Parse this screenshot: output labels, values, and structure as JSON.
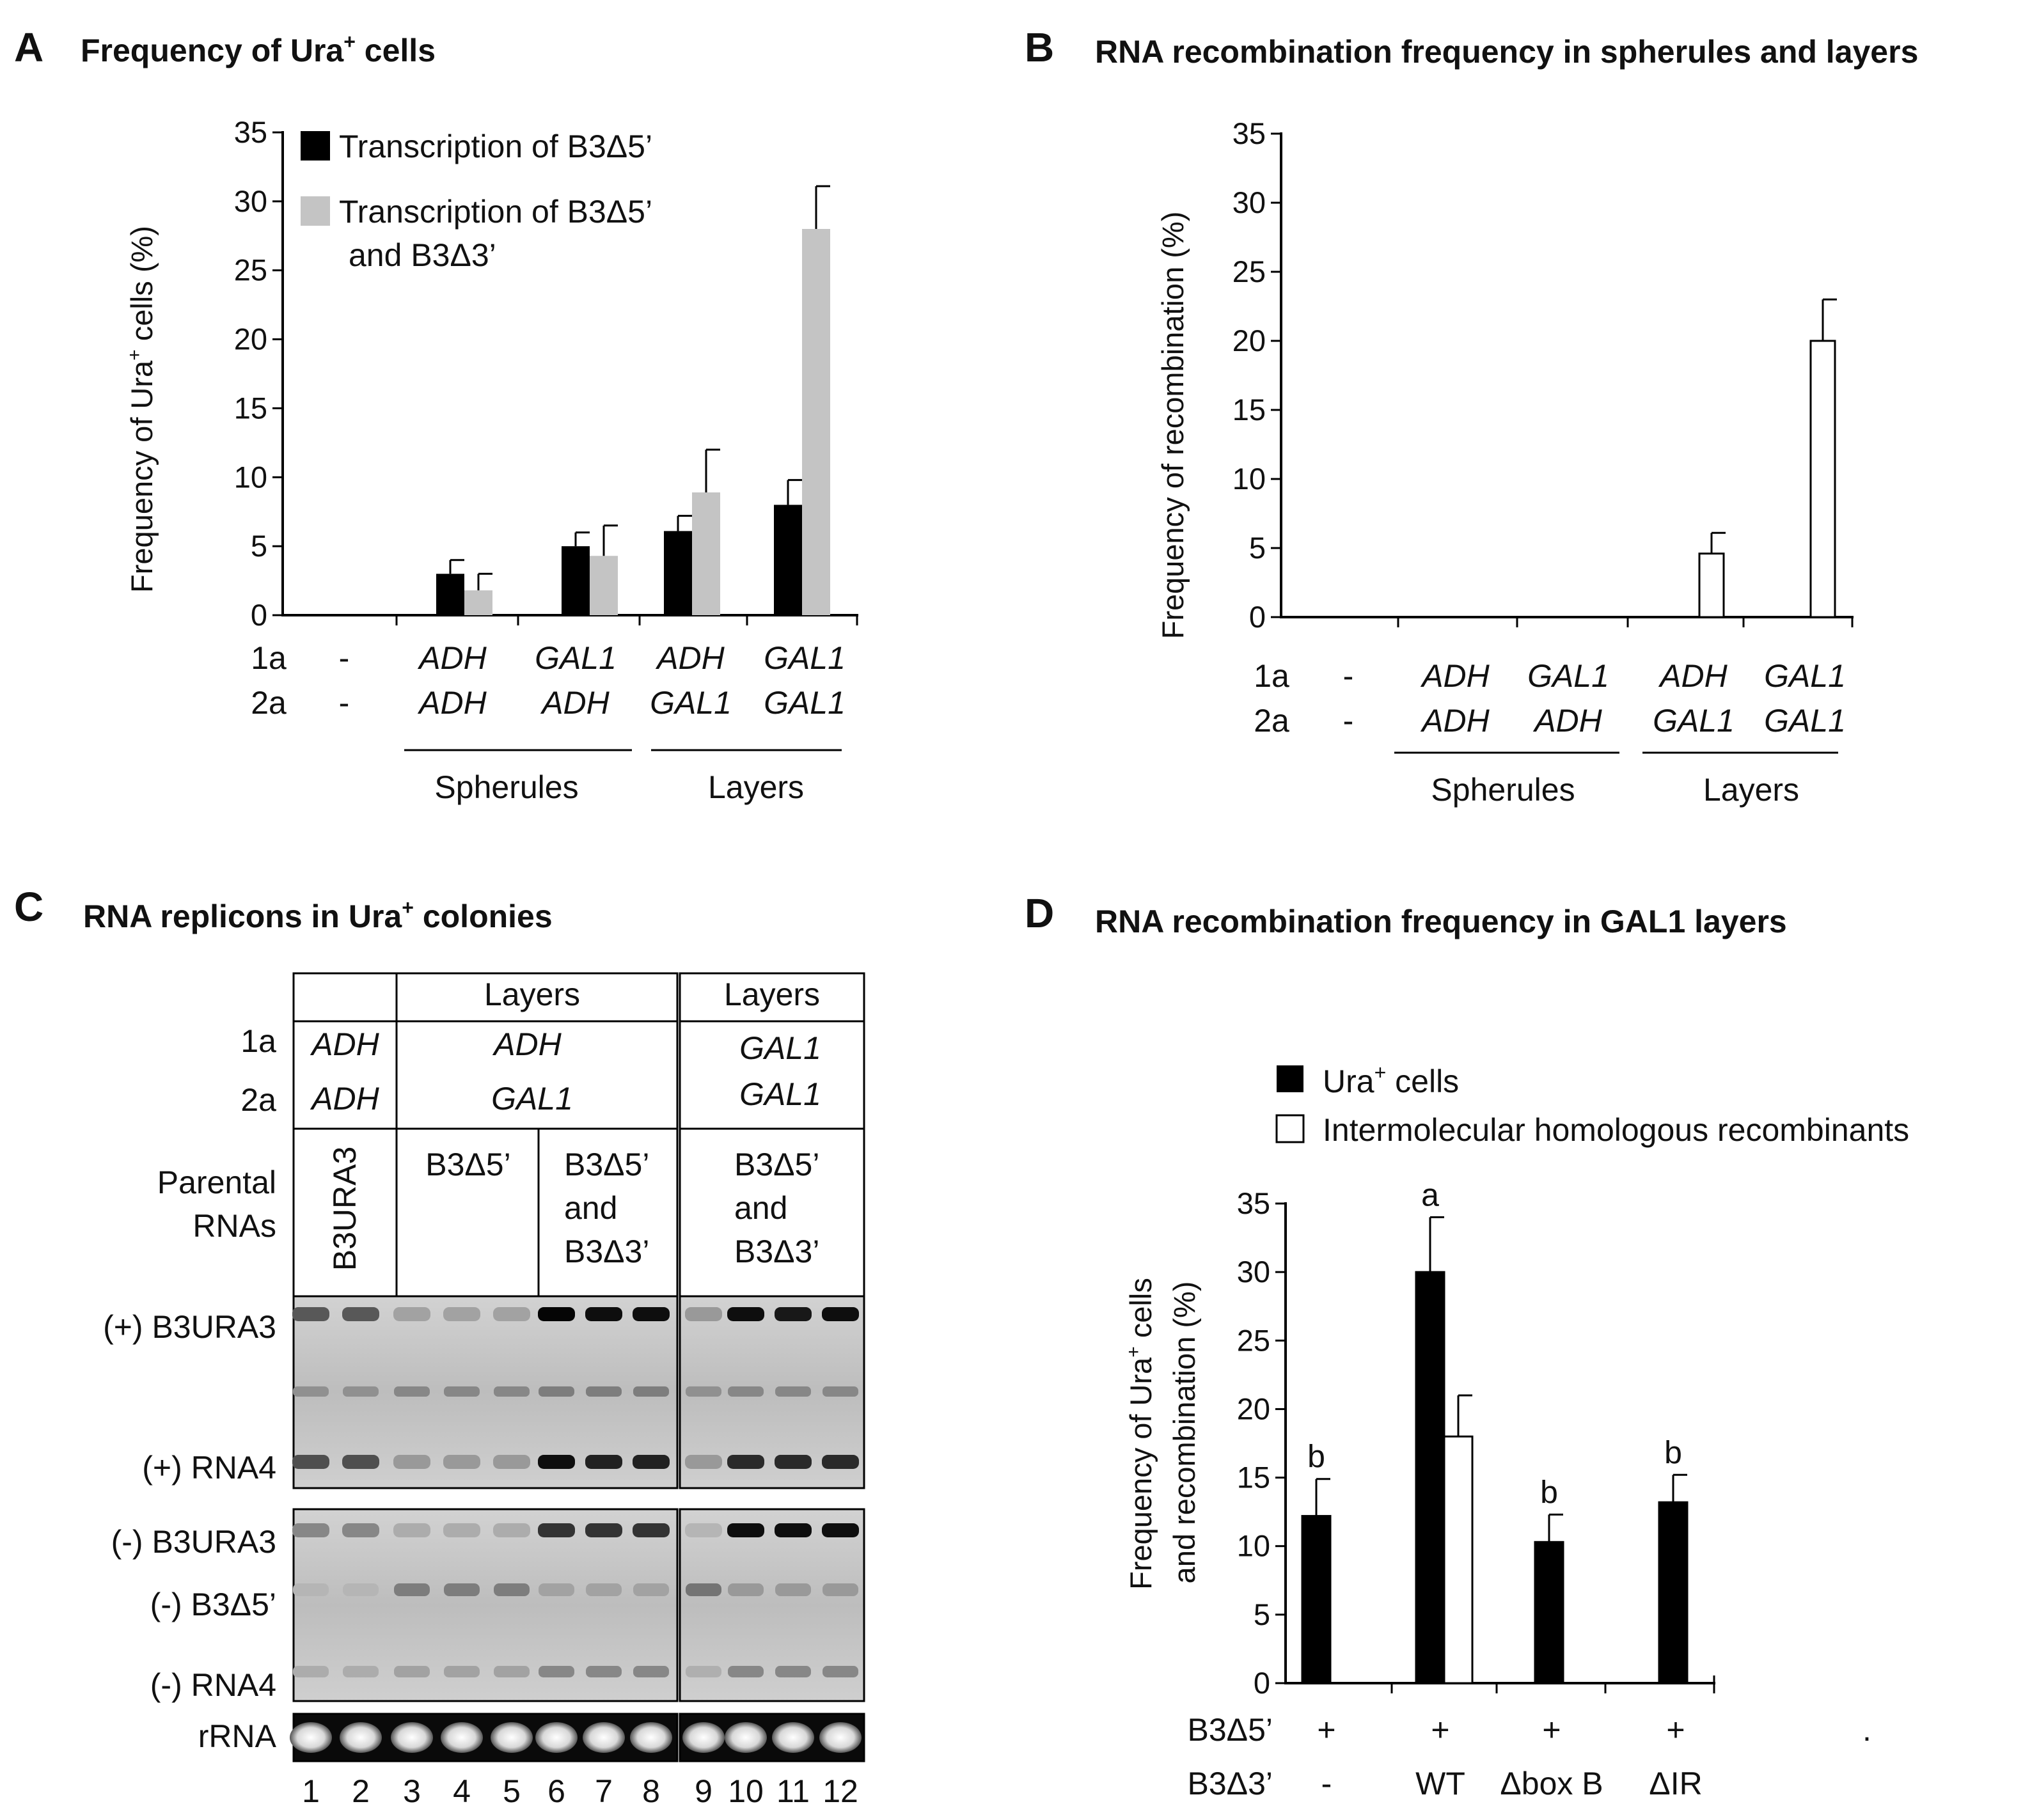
{
  "panels": {
    "A": {
      "letter": "A",
      "title": "Frequency of Ura",
      "title_sup": "+",
      "title_tail": " cells",
      "ylabel": "Frequency of Ura",
      "ylabel_sup": "+",
      "ylabel_tail": " cells (%)",
      "legend": [
        {
          "label": "Transcription of B3Δ5’",
          "color": "#000000"
        },
        {
          "label": "Transcription of B3Δ5’",
          "label2": "and B3Δ3’",
          "color": "#c4c4c4"
        }
      ]
    },
    "B": {
      "letter": "B",
      "title": "RNA recombination frequency in spherules and layers",
      "ylabel": "Frequency of recombination (%)"
    },
    "C": {
      "letter": "C",
      "title": "RNA replicons in Ura",
      "title_sup": "+",
      "title_tail": " colonies",
      "row_1a": "1a",
      "row_2a": "2a",
      "row_parental_1": "Parental",
      "row_parental_2": "RNAs",
      "col_layers_1": "Layers",
      "col_layers_2": "Layers",
      "cell_adh_1a": "ADH",
      "cell_adh_2a": "ADH",
      "cell_mid_1a": "ADH",
      "cell_mid_2a": "GAL1",
      "cell_right_1a": "GAL1",
      "cell_right_2a": "GAL1",
      "parental_b3ura3": "B3URA3",
      "parental_b3d5": "B3Δ5’",
      "parental_both_1": "B3Δ5’",
      "parental_both_2": "and",
      "parental_both_3": "B3Δ3’",
      "parental_right_1": "B3Δ5’",
      "parental_right_2": "and",
      "parental_right_3": "B3Δ3’",
      "band_pos_b3ura3": "(+) B3URA3",
      "band_pos_rna4": "(+) RNA4",
      "band_neg_b3ura3": "(-) B3URA3",
      "band_neg_b3d5": "(-) B3Δ5’",
      "band_neg_rna4": "(-) RNA4",
      "band_rrna": "rRNA",
      "lanes": [
        "1",
        "2",
        "3",
        "4",
        "5",
        "6",
        "7",
        "8",
        "9",
        "10",
        "11",
        "12"
      ]
    },
    "D": {
      "letter": "D",
      "title": "RNA recombination frequency in GAL1 layers",
      "ylabel_1": "Frequency of Ura",
      "ylabel_1_sup": "+",
      "ylabel_1_tail": "  cells",
      "ylabel_2": "and recombination (%)",
      "legend": [
        {
          "label": "Ura",
          "sup": "+",
          "tail": " cells",
          "color": "#000000"
        },
        {
          "label": "Intermolecular homologous recombinants",
          "color": "#ffffff"
        }
      ],
      "row_b3d5_label": "B3Δ5’",
      "row_b3d3_label": "B3Δ3’",
      "trailing_dot": "."
    }
  },
  "chart_data": [
    {
      "id": "A",
      "type": "bar",
      "title": "Frequency of Ura+ cells",
      "ylabel": "Frequency of Ura+ cells (%)",
      "ylim": [
        0,
        35
      ],
      "yticks": [
        "0",
        "5",
        "10",
        "15",
        "20",
        "25",
        "30",
        "35"
      ],
      "categories_1a": [
        "-",
        "ADH",
        "GAL1",
        "ADH",
        "GAL1"
      ],
      "categories_2a": [
        "-",
        "ADH",
        "ADH",
        "GAL1",
        "GAL1"
      ],
      "groups": [
        {
          "label": "Spherules",
          "from": 1,
          "to": 2
        },
        {
          "label": "Layers",
          "from": 3,
          "to": 4
        }
      ],
      "series": [
        {
          "name": "Transcription of B3Δ5’",
          "color": "#000000",
          "values": [
            0,
            3,
            5,
            6.1,
            8
          ],
          "errors": [
            0,
            1,
            1,
            1.1,
            1.8
          ]
        },
        {
          "name": "Transcription of B3Δ5’ and B3Δ3’",
          "color": "#c4c4c4",
          "values": [
            0,
            1.8,
            4.3,
            8.9,
            28
          ],
          "errors": [
            0,
            1.2,
            2.2,
            3.1,
            3.1
          ]
        }
      ]
    },
    {
      "id": "B",
      "type": "bar",
      "title": "RNA recombination frequency in spherules and layers",
      "ylabel": "Frequency of recombination (%)",
      "ylim": [
        0,
        35
      ],
      "yticks": [
        "0",
        "5",
        "10",
        "15",
        "20",
        "25",
        "30",
        "35"
      ],
      "categories_1a": [
        "-",
        "ADH",
        "GAL1",
        "ADH",
        "GAL1"
      ],
      "categories_2a": [
        "-",
        "ADH",
        "ADH",
        "GAL1",
        "GAL1"
      ],
      "groups": [
        {
          "label": "Spherules",
          "from": 1,
          "to": 2
        },
        {
          "label": "Layers",
          "from": 3,
          "to": 4
        }
      ],
      "series": [
        {
          "name": "Recombination",
          "color": "#ffffff",
          "values": [
            0,
            0,
            0,
            4.6,
            20
          ],
          "errors": [
            0,
            0,
            0,
            1.5,
            3
          ]
        }
      ]
    },
    {
      "id": "D",
      "type": "bar",
      "title": "RNA recombination frequency in GAL1 layers",
      "ylabel": "Frequency of Ura+ cells and recombination (%)",
      "ylim": [
        0,
        35
      ],
      "yticks": [
        "0",
        "5",
        "10",
        "15",
        "20",
        "25",
        "30",
        "35"
      ],
      "categories_b3d5": [
        "+",
        "+",
        "+",
        "+"
      ],
      "categories_b3d3": [
        "-",
        "WT",
        "Δbox B",
        "ΔIR"
      ],
      "letters": [
        "b",
        "a",
        "b",
        "b"
      ],
      "series": [
        {
          "name": "Ura+ cells",
          "color": "#000000",
          "values": [
            12.2,
            30,
            10.3,
            13.2
          ],
          "errors": [
            2.7,
            4,
            2,
            2
          ]
        },
        {
          "name": "Intermolecular homologous recombinants",
          "color": "#ffffff",
          "values": [
            null,
            18,
            null,
            null
          ],
          "errors": [
            null,
            3,
            null,
            null
          ]
        }
      ]
    }
  ]
}
